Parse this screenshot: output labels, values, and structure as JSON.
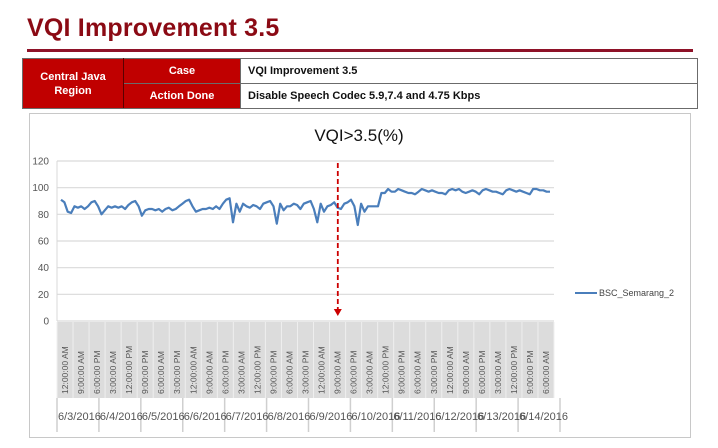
{
  "page": {
    "title": "VQI Improvement 3.5",
    "accent_color": "#8b0a14",
    "table_header_color": "#c00000"
  },
  "info_table": {
    "region_label": "Central Java Region",
    "rows": [
      {
        "label": "Case",
        "value": "VQI Improvement 3.5"
      },
      {
        "label": "Action Done",
        "value": "Disable Speech Codec  5.9,7.4 and 4.75 Kbps"
      }
    ]
  },
  "chart_data": {
    "type": "line",
    "title": "VQI>3.5(%)",
    "xlabel": "",
    "ylabel": "",
    "ylim": [
      0,
      120
    ],
    "yticks": [
      0,
      20,
      40,
      60,
      80,
      100,
      120
    ],
    "grid": true,
    "legend_position": "right",
    "series": [
      {
        "name": "BSC_Semarang_2",
        "color": "#4a7ebb",
        "values": [
          91,
          89,
          82,
          81,
          86,
          85,
          86,
          84,
          86,
          89,
          90,
          86,
          80,
          83,
          86,
          85,
          86,
          85,
          86,
          84,
          87,
          89,
          90,
          86,
          79,
          83,
          84,
          84,
          83,
          84,
          82,
          84,
          85,
          83,
          84,
          86,
          88,
          90,
          91,
          86,
          82,
          83,
          84,
          84,
          85,
          84,
          86,
          84,
          88,
          91,
          92,
          74,
          88,
          82,
          88,
          86,
          85,
          87,
          86,
          84,
          88,
          89,
          90,
          86,
          73,
          88,
          83,
          86,
          86,
          88,
          87,
          84,
          88,
          89,
          90,
          84,
          74,
          88,
          82,
          86,
          87,
          89,
          85,
          84,
          88,
          89,
          91,
          86,
          72,
          88,
          82,
          86,
          86,
          86,
          86,
          96,
          96,
          99,
          97,
          97,
          99,
          98,
          97,
          96,
          96,
          95,
          97,
          99,
          98,
          97,
          98,
          97,
          96,
          96,
          95,
          98,
          99,
          98,
          99,
          97,
          96,
          97,
          98,
          97,
          95,
          98,
          99,
          98,
          97,
          97,
          96,
          95,
          98,
          99,
          98,
          97,
          98,
          97,
          96,
          95,
          99,
          99,
          98,
          98,
          97,
          97
        ]
      }
    ],
    "x_tick_labels": [
      "12:00:00 AM",
      "9:00:00 AM",
      "6:00:00 PM",
      "3:00:00 AM",
      "12:00:00 PM",
      "9:00:00 PM",
      "6:00:00 AM",
      "3:00:00 PM",
      "12:00:00 AM",
      "9:00:00 AM",
      "6:00:00 PM",
      "3:00:00 AM",
      "12:00:00 PM",
      "9:00:00 PM",
      "6:00:00 AM",
      "3:00:00 PM",
      "12:00:00 AM",
      "9:00:00 AM",
      "6:00:00 PM",
      "3:00:00 AM",
      "12:00:00 PM",
      "9:00:00 PM",
      "6:00:00 AM",
      "3:00:00 PM",
      "12:00:00 AM",
      "9:00:00 AM",
      "6:00:00 PM",
      "3:00:00 AM",
      "12:00:00 PM",
      "9:00:00 PM",
      "6:00:00 AM"
    ],
    "x_date_labels": [
      "6/3/2016",
      "6/4/2016",
      "6/5/2016",
      "6/6/2016",
      "6/7/2016",
      "6/8/2016",
      "6/9/2016",
      "6/10/2016",
      "6/11/2016",
      "6/12/2016",
      "6/13/2016",
      "6/14/2016"
    ],
    "annotations": [
      {
        "type": "vertical-dashed-arrow",
        "color": "#cc0000",
        "at_date": "6/9/2016",
        "x_fraction": 0.565,
        "description": "change applied"
      }
    ]
  }
}
